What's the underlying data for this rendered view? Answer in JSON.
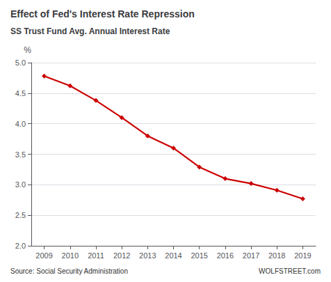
{
  "chart_data": {
    "type": "line",
    "title": "Effect of Fed's Interest Rate Repression",
    "subtitle": "SS Trust Fund Avg. Annual Interest Rate",
    "ylabel": "%",
    "x": [
      2009,
      2010,
      2011,
      2012,
      2013,
      2014,
      2015,
      2016,
      2017,
      2018,
      2019
    ],
    "values": [
      4.78,
      4.62,
      4.38,
      4.1,
      3.8,
      3.6,
      3.29,
      3.1,
      3.02,
      2.91,
      2.77
    ],
    "color": "#cc0000",
    "marker": "diamond",
    "xlim": [
      2008.5,
      2019.5
    ],
    "xticks": [
      2009,
      2010,
      2011,
      2012,
      2013,
      2014,
      2015,
      2016,
      2017,
      2018,
      2019
    ],
    "ylim": [
      2.0,
      5.0
    ],
    "yticks": [
      {
        "value": 2.0,
        "label": "2.0"
      },
      2.5,
      {
        "value": 3.0,
        "label": "3.0"
      },
      3.5,
      {
        "value": 4.0,
        "label": "4.0"
      },
      4.5,
      {
        "value": 5.0,
        "label": "5.0"
      }
    ],
    "grid": true,
    "annotations": [
      "Source: Social Security Administration",
      "WOLFSTREET.com"
    ]
  }
}
